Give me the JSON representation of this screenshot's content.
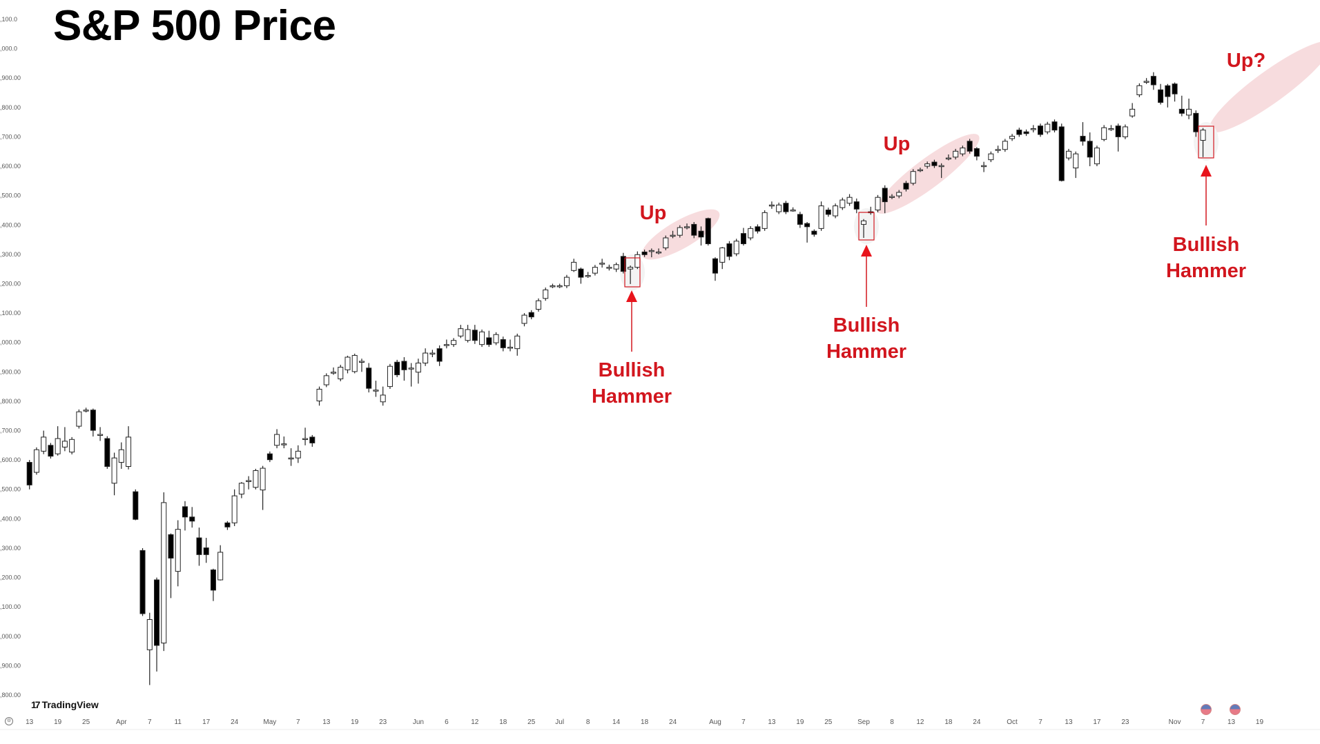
{
  "title": "S&P 500 Price",
  "brand": "TradingView",
  "icons": [
    "settings-icon",
    "tradingview-logo-icon",
    "us-flag-event-icon",
    "arrow-up-icon"
  ],
  "colors": {
    "annotation": "#d2161e",
    "highlight": "#f6d6d8",
    "up_body": "#ffffff",
    "down_body": "#000000"
  },
  "annotations": {
    "up1": "Up",
    "up2": "Up",
    "up3": "Up?",
    "hammer1": [
      "Bullish",
      "Hammer"
    ],
    "hammer2": [
      "Bullish",
      "Hammer"
    ],
    "hammer3": [
      "Bullish",
      "Hammer"
    ],
    "hammer_candles": [
      85,
      118,
      166
    ]
  },
  "chart_data": {
    "type": "candlestick",
    "title": "S&P 500 Price",
    "ylim": [
      3800,
      6100
    ],
    "y_ticks": [
      6100,
      6000,
      5900,
      5800,
      5700,
      5600,
      5500,
      5400,
      5300,
      5200,
      5100,
      5000,
      4900,
      4800,
      4700,
      4600,
      4500,
      4400,
      4300,
      4200,
      4100,
      4000,
      3900,
      3800
    ],
    "y_tick_labels": [
      ",100.0",
      ",000.0",
      ",900.00",
      ",800.00",
      ",700.00",
      ",600.00",
      ",500.00",
      ",400.00",
      ",300.00",
      ",200.00",
      ",100.00",
      ",000.00",
      ",900.00",
      ",800.00",
      ",700.00",
      ",600.00",
      ",500.00",
      ",400.00",
      ",300.00",
      ",200.00",
      ",100.00",
      ",000.00",
      ",900.00",
      ",800.00"
    ],
    "x_ticks": [
      {
        "i": 0,
        "label": "13"
      },
      {
        "i": 4,
        "label": "19"
      },
      {
        "i": 8,
        "label": "25"
      },
      {
        "i": 13,
        "label": "Apr"
      },
      {
        "i": 17,
        "label": "7"
      },
      {
        "i": 21,
        "label": "11"
      },
      {
        "i": 25,
        "label": "17"
      },
      {
        "i": 29,
        "label": "24"
      },
      {
        "i": 34,
        "label": "May"
      },
      {
        "i": 38,
        "label": "7"
      },
      {
        "i": 42,
        "label": "13"
      },
      {
        "i": 46,
        "label": "19"
      },
      {
        "i": 50,
        "label": "23"
      },
      {
        "i": 55,
        "label": "Jun"
      },
      {
        "i": 59,
        "label": "6"
      },
      {
        "i": 63,
        "label": "12"
      },
      {
        "i": 67,
        "label": "18"
      },
      {
        "i": 71,
        "label": "25"
      },
      {
        "i": 75,
        "label": "Jul"
      },
      {
        "i": 79,
        "label": "8"
      },
      {
        "i": 83,
        "label": "14"
      },
      {
        "i": 87,
        "label": "18"
      },
      {
        "i": 91,
        "label": "24"
      },
      {
        "i": 97,
        "label": "Aug"
      },
      {
        "i": 101,
        "label": "7"
      },
      {
        "i": 105,
        "label": "13"
      },
      {
        "i": 109,
        "label": "19"
      },
      {
        "i": 113,
        "label": "25"
      },
      {
        "i": 118,
        "label": "Sep"
      },
      {
        "i": 122,
        "label": "8"
      },
      {
        "i": 126,
        "label": "12"
      },
      {
        "i": 130,
        "label": "18"
      },
      {
        "i": 134,
        "label": "24"
      },
      {
        "i": 139,
        "label": "Oct"
      },
      {
        "i": 143,
        "label": "7"
      },
      {
        "i": 147,
        "label": "13"
      },
      {
        "i": 151,
        "label": "17"
      },
      {
        "i": 155,
        "label": "23"
      },
      {
        "i": 162,
        "label": "Nov"
      },
      {
        "i": 166,
        "label": "7"
      },
      {
        "i": 170,
        "label": "13"
      },
      {
        "i": 174,
        "label": "19"
      }
    ],
    "candles_note": "each candle [open, close] or [open, close, high, low]",
    "candles": [
      [
        4592,
        4515,
        4600,
        4500
      ],
      [
        4558,
        4635
      ],
      [
        4630,
        4678,
        4700,
        4620
      ],
      [
        4650,
        4613
      ],
      [
        4621,
        4673,
        4715,
        4615
      ],
      [
        4644,
        4664,
        4712,
        4630
      ],
      [
        4627,
        4670
      ],
      [
        4715,
        4764
      ],
      [
        4770,
        4770,
        4778,
        4762
      ],
      [
        4770,
        4701,
        4775,
        4680
      ],
      [
        4687,
        4687,
        4712,
        4665
      ],
      [
        4673,
        4578
      ],
      [
        4521,
        4607,
        4625,
        4480
      ],
      [
        4592,
        4635,
        4660,
        4570
      ],
      [
        4578,
        4678,
        4715,
        4568
      ],
      [
        4492,
        4398,
        4500,
        4395
      ],
      [
        4292,
        4077
      ],
      [
        3954,
        4057,
        4080,
        3834
      ],
      [
        4192,
        3969,
        4200,
        3880
      ],
      [
        3977,
        4455,
        4490,
        3950
      ],
      [
        4346,
        4266,
        4350,
        4130
      ],
      [
        4221,
        4364,
        4395,
        4170
      ],
      [
        4441,
        4406,
        4460,
        4360
      ],
      [
        4406,
        4392,
        4440,
        4370
      ],
      [
        4335,
        4278,
        4370,
        4240
      ],
      [
        4301,
        4278,
        4335,
        4250
      ],
      [
        4226,
        4157,
        4230,
        4120
      ],
      [
        4192,
        4286,
        4310,
        4190
      ],
      [
        4386,
        4372,
        4392,
        4362
      ],
      [
        4386,
        4478,
        4500,
        4375
      ],
      [
        4484,
        4521,
        4525,
        4470
      ],
      [
        4530,
        4530,
        4545,
        4500
      ],
      [
        4507,
        4564,
        4570,
        4500
      ],
      [
        4498,
        4572,
        4580,
        4430
      ],
      [
        4621,
        4601
      ],
      [
        4650,
        4687,
        4705,
        4640
      ],
      [
        4655,
        4655,
        4680,
        4640
      ],
      [
        4607,
        4607,
        4640,
        4580
      ],
      [
        4607,
        4630,
        4650,
        4590
      ],
      [
        4673,
        4673,
        4710,
        4650
      ],
      [
        4678,
        4658,
        4685,
        4645
      ],
      [
        4801,
        4841,
        4850,
        4785
      ],
      [
        4856,
        4887
      ],
      [
        4899,
        4899,
        4915,
        4890
      ],
      [
        4876,
        4916
      ],
      [
        4907,
        4950,
        4955,
        4895
      ],
      [
        4901,
        4956,
        4962,
        4895
      ],
      [
        4936,
        4936,
        4945,
        4900
      ],
      [
        4913,
        4844,
        4930,
        4830
      ],
      [
        4838,
        4838,
        4870,
        4815
      ],
      [
        4798,
        4821,
        4850,
        4785
      ],
      [
        4850,
        4919
      ],
      [
        4933,
        4890
      ],
      [
        4936,
        4907,
        4950,
        4870
      ],
      [
        4913,
        4913,
        4930,
        4850
      ],
      [
        4899,
        4930,
        4945,
        4860
      ],
      [
        4930,
        4964,
        4980,
        4920
      ],
      [
        4964,
        4964,
        4975,
        4950
      ],
      [
        4979,
        4936,
        4990,
        4920
      ],
      [
        4993,
        4993,
        5010,
        4980
      ],
      [
        4993,
        5007
      ],
      [
        5022,
        5047,
        5060,
        5015
      ],
      [
        5007,
        5044,
        5060,
        5000
      ],
      [
        5042,
        5007,
        5060,
        4995
      ],
      [
        4993,
        5036
      ],
      [
        5016,
        4993,
        5040,
        4985
      ],
      [
        4999,
        5027
      ],
      [
        5010,
        4982,
        5020,
        4970
      ],
      [
        4984,
        4984,
        5010,
        4970
      ],
      [
        4979,
        5022,
        5030,
        4955
      ],
      [
        5065,
        5093,
        5100,
        5055
      ],
      [
        5102,
        5087
      ],
      [
        5113,
        5142
      ],
      [
        5150,
        5179
      ],
      [
        5193,
        5193,
        5200,
        5185
      ],
      [
        5193,
        5193,
        5200,
        5185
      ],
      [
        5193,
        5222
      ],
      [
        5245,
        5273,
        5285,
        5240
      ],
      [
        5250,
        5222,
        5255,
        5200
      ],
      [
        5228,
        5228,
        5240,
        5220
      ],
      [
        5236,
        5256
      ],
      [
        5270,
        5270,
        5285,
        5255
      ],
      [
        5256,
        5256,
        5265,
        5245
      ],
      [
        5250,
        5265,
        5272,
        5240
      ],
      [
        5293,
        5242,
        5305,
        5235
      ],
      [
        5250,
        5256,
        5262,
        5199
      ],
      [
        5256,
        5299,
        5310,
        5250
      ],
      [
        5308,
        5299
      ],
      [
        5313,
        5313,
        5320,
        5290
      ],
      [
        5308,
        5308,
        5320,
        5300
      ],
      [
        5322,
        5356
      ],
      [
        5365,
        5365,
        5380,
        5355
      ],
      [
        5365,
        5391
      ],
      [
        5394,
        5394,
        5405,
        5385
      ],
      [
        5402,
        5365,
        5410,
        5355
      ],
      [
        5379,
        5359,
        5395,
        5330
      ],
      [
        5422,
        5336,
        5425,
        5330
      ],
      [
        5285,
        5236,
        5290,
        5210
      ],
      [
        5273,
        5322,
        5325,
        5250
      ],
      [
        5336,
        5293,
        5345,
        5280
      ],
      [
        5302,
        5345
      ],
      [
        5371,
        5336,
        5390,
        5330
      ],
      [
        5356,
        5388
      ],
      [
        5394,
        5379
      ],
      [
        5388,
        5442
      ],
      [
        5468,
        5468,
        5480,
        5455
      ],
      [
        5445,
        5468
      ],
      [
        5474,
        5445
      ],
      [
        5451,
        5451,
        5460,
        5445
      ],
      [
        5436,
        5402,
        5445,
        5390
      ],
      [
        5405,
        5394,
        5410,
        5340
      ],
      [
        5379,
        5368,
        5385,
        5360
      ],
      [
        5388,
        5465,
        5480,
        5380
      ],
      [
        5451,
        5436
      ],
      [
        5431,
        5465
      ],
      [
        5459,
        5485
      ],
      [
        5474,
        5494,
        5505,
        5465
      ],
      [
        5479,
        5454,
        5490,
        5440
      ],
      [
        5402,
        5414,
        5420,
        5356
      ],
      [
        5445,
        5445,
        5462,
        5435
      ],
      [
        5451,
        5494
      ],
      [
        5525,
        5479,
        5535,
        5440
      ],
      [
        5497,
        5497,
        5505,
        5488
      ],
      [
        5499,
        5511
      ],
      [
        5542,
        5522
      ],
      [
        5542,
        5582,
        5590,
        5535
      ],
      [
        5588,
        5588,
        5595,
        5580
      ],
      [
        5600,
        5608
      ],
      [
        5614,
        5602
      ],
      [
        5602,
        5602,
        5610,
        5560
      ],
      [
        5628,
        5628,
        5640,
        5620
      ],
      [
        5631,
        5651
      ],
      [
        5642,
        5662
      ],
      [
        5685,
        5651
      ],
      [
        5660,
        5634,
        5665,
        5620
      ],
      [
        5602,
        5602,
        5615,
        5580
      ],
      [
        5622,
        5642
      ],
      [
        5657,
        5657,
        5670,
        5645
      ],
      [
        5657,
        5685
      ],
      [
        5694,
        5702
      ],
      [
        5723,
        5708
      ],
      [
        5717,
        5711
      ],
      [
        5728,
        5728,
        5740,
        5715
      ],
      [
        5737,
        5708,
        5745,
        5700
      ],
      [
        5717,
        5743
      ],
      [
        5751,
        5723
      ],
      [
        5734,
        5551,
        5745,
        5548
      ],
      [
        5628,
        5651
      ],
      [
        5594,
        5642,
        5650,
        5560
      ],
      [
        5702,
        5685,
        5750,
        5670
      ],
      [
        5685,
        5631,
        5715,
        5600
      ],
      [
        5608,
        5662
      ],
      [
        5691,
        5731,
        5740,
        5685
      ],
      [
        5728,
        5728,
        5740,
        5720
      ],
      [
        5737,
        5700,
        5745,
        5650
      ],
      [
        5700,
        5734
      ],
      [
        5771,
        5794,
        5815,
        5765
      ],
      [
        5843,
        5874
      ],
      [
        5889,
        5889,
        5900,
        5880
      ],
      [
        5906,
        5877,
        5920,
        5860
      ],
      [
        5860,
        5817,
        5880,
        5810
      ],
      [
        5874,
        5837,
        5880,
        5800
      ],
      [
        5880,
        5846,
        5885,
        5820
      ],
      [
        5794,
        5780,
        5840,
        5770
      ],
      [
        5774,
        5794,
        5830,
        5760
      ],
      [
        5780,
        5717,
        5790,
        5700
      ],
      [
        5688,
        5723,
        5730,
        5631
      ]
    ]
  }
}
